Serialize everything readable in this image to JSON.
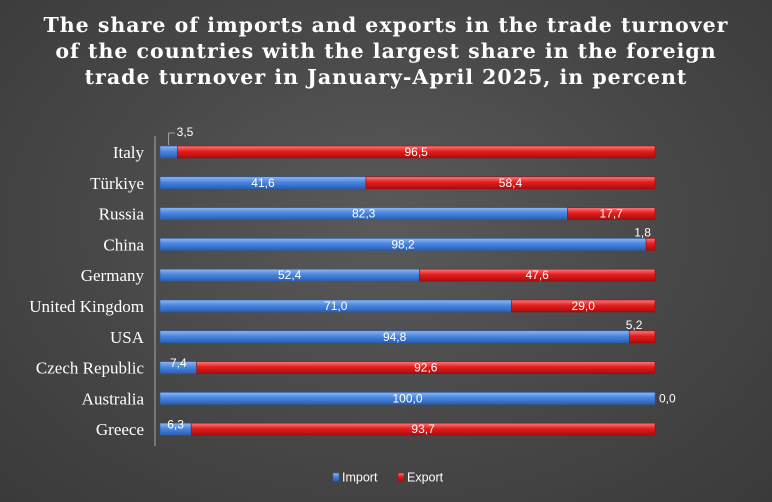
{
  "chart_data": {
    "type": "bar",
    "orientation": "horizontal",
    "stacked": true,
    "title": "The share of imports and exports in the trade turnover of the countries with the largest share in the foreign trade turnover in January-April 2025, in percent",
    "categories": [
      "Italy",
      "Türkiye",
      "Russia",
      "China",
      "Germany",
      "United Kingdom",
      "USA",
      "Czech Republic",
      "Australia",
      "Greece"
    ],
    "series": [
      {
        "name": "Import",
        "color": "#3f7fdc",
        "values": [
          3.5,
          41.6,
          82.3,
          98.2,
          52.4,
          71.0,
          94.8,
          7.4,
          100.0,
          6.3
        ],
        "labels": [
          "3,5",
          "41,6",
          "82,3",
          "98,2",
          "52,4",
          "71,0",
          "94,8",
          "7,4",
          "100,0",
          "6,3"
        ]
      },
      {
        "name": "Export",
        "color": "#e01818",
        "values": [
          96.5,
          58.4,
          17.7,
          1.8,
          47.6,
          29.0,
          5.2,
          92.6,
          0.0,
          93.7
        ],
        "labels": [
          "96,5",
          "58,4",
          "17,7",
          "1,8",
          "47,6",
          "29,0",
          "5,2",
          "92,6",
          "0,0",
          "93,7"
        ]
      }
    ],
    "xlim": [
      0,
      100
    ],
    "grid": false,
    "legend": "bottom"
  }
}
